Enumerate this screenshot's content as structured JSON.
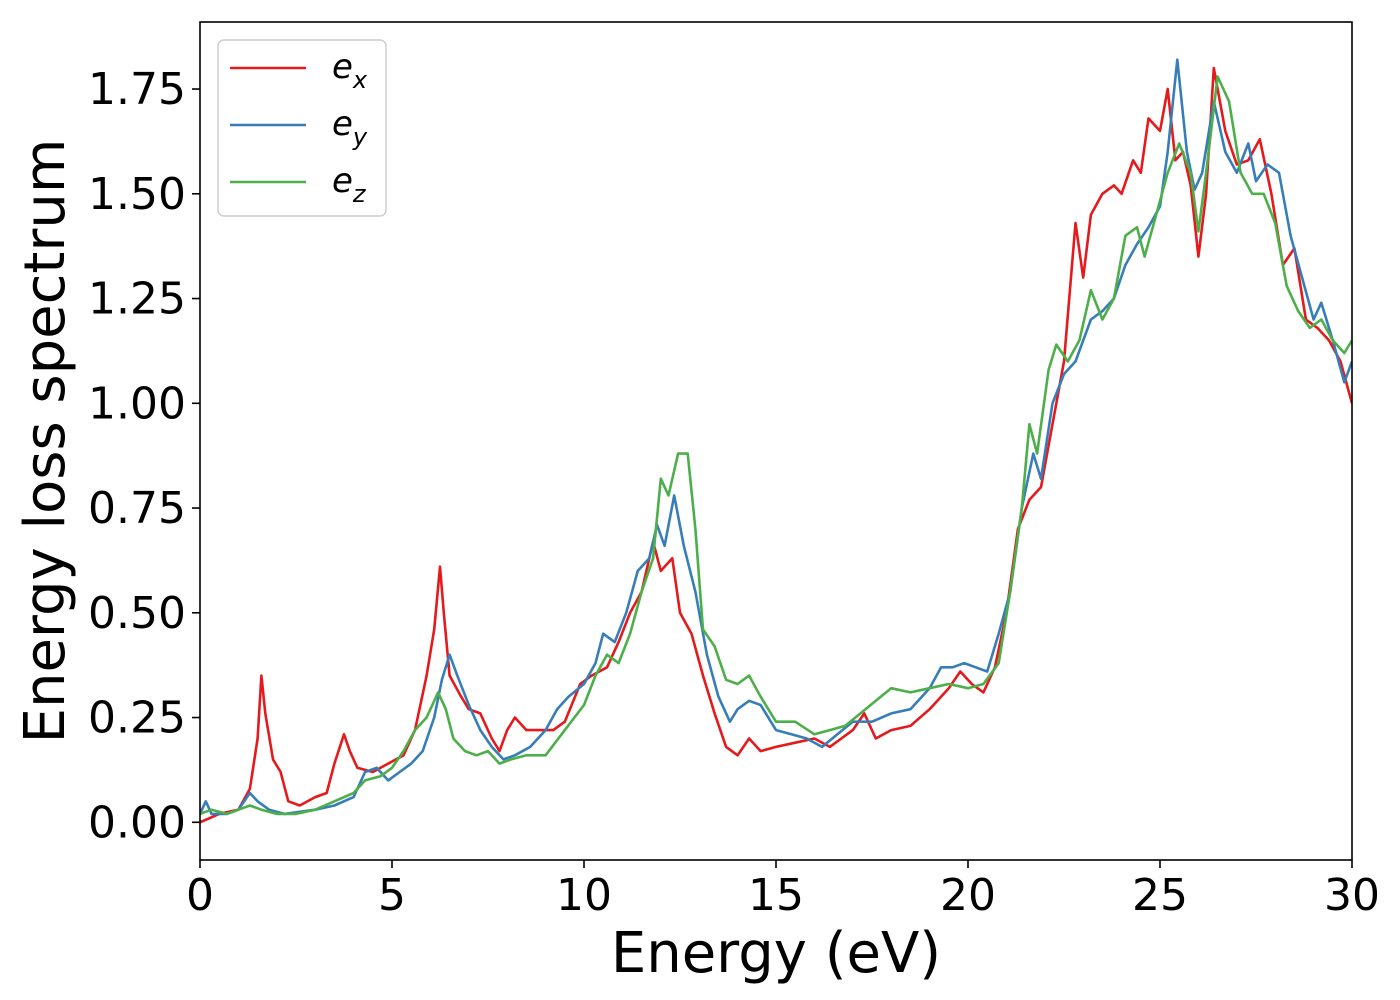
{
  "chart_data": {
    "type": "line",
    "xlabel": "Energy (eV)",
    "ylabel": "Energy loss spectrum",
    "xlim": [
      0,
      30
    ],
    "ylim": [
      -0.09,
      1.91
    ],
    "xticks": [
      "0",
      "5",
      "10",
      "15",
      "20",
      "25",
      "30"
    ],
    "xtick_values": [
      0,
      5,
      10,
      15,
      20,
      25,
      30
    ],
    "yticks": [
      "0.00",
      "0.25",
      "0.50",
      "0.75",
      "1.00",
      "1.25",
      "1.50",
      "1.75"
    ],
    "ytick_values": [
      0,
      0.25,
      0.5,
      0.75,
      1.0,
      1.25,
      1.5,
      1.75
    ],
    "grid": false,
    "legend_position": "top-left",
    "series": [
      {
        "name": "e_x",
        "legend_base": "e",
        "legend_sub": "x",
        "color": "#e41a1c",
        "points": [
          [
            0.0,
            0.0
          ],
          [
            0.5,
            0.02
          ],
          [
            1.0,
            0.03
          ],
          [
            1.3,
            0.08
          ],
          [
            1.5,
            0.2
          ],
          [
            1.6,
            0.35
          ],
          [
            1.7,
            0.26
          ],
          [
            1.9,
            0.15
          ],
          [
            2.1,
            0.12
          ],
          [
            2.3,
            0.05
          ],
          [
            2.6,
            0.04
          ],
          [
            3.0,
            0.06
          ],
          [
            3.3,
            0.07
          ],
          [
            3.5,
            0.14
          ],
          [
            3.75,
            0.21
          ],
          [
            3.9,
            0.17
          ],
          [
            4.1,
            0.13
          ],
          [
            4.5,
            0.12
          ],
          [
            4.9,
            0.14
          ],
          [
            5.3,
            0.16
          ],
          [
            5.6,
            0.22
          ],
          [
            5.9,
            0.35
          ],
          [
            6.1,
            0.46
          ],
          [
            6.25,
            0.61
          ],
          [
            6.35,
            0.5
          ],
          [
            6.5,
            0.35
          ],
          [
            6.8,
            0.3
          ],
          [
            7.0,
            0.27
          ],
          [
            7.3,
            0.26
          ],
          [
            7.6,
            0.2
          ],
          [
            7.8,
            0.17
          ],
          [
            8.0,
            0.22
          ],
          [
            8.2,
            0.25
          ],
          [
            8.5,
            0.22
          ],
          [
            8.8,
            0.22
          ],
          [
            9.2,
            0.22
          ],
          [
            9.5,
            0.24
          ],
          [
            9.9,
            0.33
          ],
          [
            10.2,
            0.35
          ],
          [
            10.6,
            0.37
          ],
          [
            10.9,
            0.43
          ],
          [
            11.2,
            0.5
          ],
          [
            11.5,
            0.55
          ],
          [
            11.8,
            0.67
          ],
          [
            12.0,
            0.6
          ],
          [
            12.3,
            0.63
          ],
          [
            12.5,
            0.5
          ],
          [
            12.8,
            0.45
          ],
          [
            13.1,
            0.35
          ],
          [
            13.4,
            0.26
          ],
          [
            13.7,
            0.18
          ],
          [
            14.0,
            0.16
          ],
          [
            14.3,
            0.2
          ],
          [
            14.6,
            0.17
          ],
          [
            15.0,
            0.18
          ],
          [
            15.5,
            0.19
          ],
          [
            16.0,
            0.2
          ],
          [
            16.4,
            0.18
          ],
          [
            16.7,
            0.2
          ],
          [
            17.0,
            0.22
          ],
          [
            17.3,
            0.26
          ],
          [
            17.6,
            0.2
          ],
          [
            18.0,
            0.22
          ],
          [
            18.5,
            0.23
          ],
          [
            19.0,
            0.27
          ],
          [
            19.5,
            0.32
          ],
          [
            19.8,
            0.36
          ],
          [
            20.1,
            0.33
          ],
          [
            20.4,
            0.31
          ],
          [
            20.7,
            0.37
          ],
          [
            21.0,
            0.5
          ],
          [
            21.3,
            0.7
          ],
          [
            21.6,
            0.77
          ],
          [
            21.9,
            0.8
          ],
          [
            22.2,
            0.95
          ],
          [
            22.5,
            1.1
          ],
          [
            22.8,
            1.43
          ],
          [
            23.0,
            1.3
          ],
          [
            23.2,
            1.45
          ],
          [
            23.5,
            1.5
          ],
          [
            23.8,
            1.52
          ],
          [
            24.0,
            1.5
          ],
          [
            24.3,
            1.58
          ],
          [
            24.5,
            1.55
          ],
          [
            24.7,
            1.68
          ],
          [
            25.0,
            1.65
          ],
          [
            25.2,
            1.75
          ],
          [
            25.4,
            1.58
          ],
          [
            25.6,
            1.6
          ],
          [
            25.8,
            1.52
          ],
          [
            26.0,
            1.35
          ],
          [
            26.2,
            1.5
          ],
          [
            26.4,
            1.8
          ],
          [
            26.7,
            1.65
          ],
          [
            27.0,
            1.57
          ],
          [
            27.3,
            1.58
          ],
          [
            27.6,
            1.63
          ],
          [
            27.9,
            1.5
          ],
          [
            28.2,
            1.33
          ],
          [
            28.5,
            1.37
          ],
          [
            28.8,
            1.2
          ],
          [
            29.1,
            1.18
          ],
          [
            29.4,
            1.15
          ],
          [
            29.7,
            1.1
          ],
          [
            30.0,
            1.0
          ]
        ]
      },
      {
        "name": "e_y",
        "legend_base": "e",
        "legend_sub": "y",
        "color": "#377eb8",
        "points": [
          [
            0.0,
            0.02
          ],
          [
            0.15,
            0.05
          ],
          [
            0.3,
            0.02
          ],
          [
            0.7,
            0.02
          ],
          [
            1.0,
            0.03
          ],
          [
            1.3,
            0.07
          ],
          [
            1.5,
            0.05
          ],
          [
            1.8,
            0.03
          ],
          [
            2.2,
            0.02
          ],
          [
            3.0,
            0.03
          ],
          [
            3.5,
            0.04
          ],
          [
            4.0,
            0.06
          ],
          [
            4.3,
            0.12
          ],
          [
            4.6,
            0.13
          ],
          [
            4.9,
            0.1
          ],
          [
            5.2,
            0.12
          ],
          [
            5.5,
            0.14
          ],
          [
            5.8,
            0.17
          ],
          [
            6.1,
            0.25
          ],
          [
            6.3,
            0.34
          ],
          [
            6.5,
            0.4
          ],
          [
            6.7,
            0.35
          ],
          [
            7.0,
            0.28
          ],
          [
            7.3,
            0.22
          ],
          [
            7.6,
            0.18
          ],
          [
            7.9,
            0.15
          ],
          [
            8.2,
            0.16
          ],
          [
            8.6,
            0.18
          ],
          [
            9.0,
            0.22
          ],
          [
            9.3,
            0.27
          ],
          [
            9.6,
            0.3
          ],
          [
            10.0,
            0.33
          ],
          [
            10.3,
            0.38
          ],
          [
            10.5,
            0.45
          ],
          [
            10.8,
            0.43
          ],
          [
            11.1,
            0.5
          ],
          [
            11.4,
            0.6
          ],
          [
            11.7,
            0.63
          ],
          [
            11.9,
            0.71
          ],
          [
            12.1,
            0.66
          ],
          [
            12.35,
            0.78
          ],
          [
            12.6,
            0.66
          ],
          [
            12.9,
            0.55
          ],
          [
            13.2,
            0.4
          ],
          [
            13.5,
            0.3
          ],
          [
            13.8,
            0.24
          ],
          [
            14.0,
            0.27
          ],
          [
            14.3,
            0.29
          ],
          [
            14.6,
            0.28
          ],
          [
            15.0,
            0.22
          ],
          [
            15.4,
            0.21
          ],
          [
            15.8,
            0.2
          ],
          [
            16.2,
            0.18
          ],
          [
            16.6,
            0.21
          ],
          [
            17.0,
            0.24
          ],
          [
            17.5,
            0.24
          ],
          [
            18.0,
            0.26
          ],
          [
            18.5,
            0.27
          ],
          [
            19.0,
            0.32
          ],
          [
            19.3,
            0.37
          ],
          [
            19.6,
            0.37
          ],
          [
            19.9,
            0.38
          ],
          [
            20.2,
            0.37
          ],
          [
            20.5,
            0.36
          ],
          [
            20.8,
            0.45
          ],
          [
            21.1,
            0.55
          ],
          [
            21.4,
            0.75
          ],
          [
            21.7,
            0.88
          ],
          [
            21.9,
            0.82
          ],
          [
            22.2,
            1.0
          ],
          [
            22.5,
            1.07
          ],
          [
            22.8,
            1.1
          ],
          [
            23.2,
            1.2
          ],
          [
            23.5,
            1.22
          ],
          [
            23.8,
            1.25
          ],
          [
            24.1,
            1.33
          ],
          [
            24.4,
            1.38
          ],
          [
            24.7,
            1.42
          ],
          [
            25.0,
            1.47
          ],
          [
            25.2,
            1.6
          ],
          [
            25.45,
            1.82
          ],
          [
            25.7,
            1.6
          ],
          [
            25.9,
            1.51
          ],
          [
            26.1,
            1.55
          ],
          [
            26.4,
            1.72
          ],
          [
            26.7,
            1.6
          ],
          [
            27.0,
            1.55
          ],
          [
            27.3,
            1.62
          ],
          [
            27.5,
            1.53
          ],
          [
            27.8,
            1.57
          ],
          [
            28.1,
            1.55
          ],
          [
            28.4,
            1.4
          ],
          [
            28.7,
            1.3
          ],
          [
            29.0,
            1.2
          ],
          [
            29.2,
            1.24
          ],
          [
            29.5,
            1.15
          ],
          [
            29.8,
            1.05
          ],
          [
            30.0,
            1.1
          ]
        ]
      },
      {
        "name": "e_z",
        "legend_base": "e",
        "legend_sub": "z",
        "color": "#4daf4a",
        "points": [
          [
            0.0,
            0.02
          ],
          [
            0.3,
            0.03
          ],
          [
            0.7,
            0.02
          ],
          [
            1.0,
            0.03
          ],
          [
            1.3,
            0.04
          ],
          [
            1.6,
            0.03
          ],
          [
            2.0,
            0.02
          ],
          [
            2.5,
            0.02
          ],
          [
            3.0,
            0.03
          ],
          [
            3.5,
            0.05
          ],
          [
            4.0,
            0.07
          ],
          [
            4.3,
            0.1
          ],
          [
            4.7,
            0.11
          ],
          [
            5.0,
            0.13
          ],
          [
            5.3,
            0.17
          ],
          [
            5.6,
            0.22
          ],
          [
            5.9,
            0.25
          ],
          [
            6.2,
            0.31
          ],
          [
            6.4,
            0.27
          ],
          [
            6.6,
            0.2
          ],
          [
            6.9,
            0.17
          ],
          [
            7.2,
            0.16
          ],
          [
            7.5,
            0.17
          ],
          [
            7.8,
            0.14
          ],
          [
            8.1,
            0.15
          ],
          [
            8.5,
            0.16
          ],
          [
            9.0,
            0.16
          ],
          [
            9.5,
            0.22
          ],
          [
            10.0,
            0.28
          ],
          [
            10.3,
            0.35
          ],
          [
            10.6,
            0.4
          ],
          [
            10.9,
            0.38
          ],
          [
            11.2,
            0.45
          ],
          [
            11.5,
            0.55
          ],
          [
            11.8,
            0.63
          ],
          [
            12.0,
            0.82
          ],
          [
            12.2,
            0.78
          ],
          [
            12.45,
            0.88
          ],
          [
            12.7,
            0.88
          ],
          [
            12.9,
            0.7
          ],
          [
            13.1,
            0.46
          ],
          [
            13.4,
            0.42
          ],
          [
            13.7,
            0.34
          ],
          [
            14.0,
            0.33
          ],
          [
            14.3,
            0.35
          ],
          [
            14.6,
            0.3
          ],
          [
            15.0,
            0.24
          ],
          [
            15.5,
            0.24
          ],
          [
            16.0,
            0.21
          ],
          [
            16.4,
            0.22
          ],
          [
            16.8,
            0.23
          ],
          [
            17.2,
            0.26
          ],
          [
            17.6,
            0.29
          ],
          [
            18.0,
            0.32
          ],
          [
            18.5,
            0.31
          ],
          [
            19.0,
            0.32
          ],
          [
            19.5,
            0.33
          ],
          [
            20.0,
            0.32
          ],
          [
            20.4,
            0.33
          ],
          [
            20.8,
            0.38
          ],
          [
            21.1,
            0.55
          ],
          [
            21.4,
            0.75
          ],
          [
            21.6,
            0.95
          ],
          [
            21.8,
            0.88
          ],
          [
            22.1,
            1.08
          ],
          [
            22.3,
            1.14
          ],
          [
            22.6,
            1.1
          ],
          [
            22.9,
            1.15
          ],
          [
            23.2,
            1.27
          ],
          [
            23.5,
            1.2
          ],
          [
            23.8,
            1.25
          ],
          [
            24.1,
            1.4
          ],
          [
            24.4,
            1.42
          ],
          [
            24.6,
            1.35
          ],
          [
            24.9,
            1.45
          ],
          [
            25.2,
            1.55
          ],
          [
            25.5,
            1.62
          ],
          [
            25.8,
            1.55
          ],
          [
            26.0,
            1.41
          ],
          [
            26.2,
            1.55
          ],
          [
            26.5,
            1.78
          ],
          [
            26.8,
            1.72
          ],
          [
            27.1,
            1.55
          ],
          [
            27.4,
            1.5
          ],
          [
            27.7,
            1.5
          ],
          [
            28.0,
            1.43
          ],
          [
            28.3,
            1.28
          ],
          [
            28.6,
            1.22
          ],
          [
            28.9,
            1.18
          ],
          [
            29.2,
            1.2
          ],
          [
            29.5,
            1.15
          ],
          [
            29.8,
            1.12
          ],
          [
            30.0,
            1.15
          ]
        ]
      }
    ]
  }
}
